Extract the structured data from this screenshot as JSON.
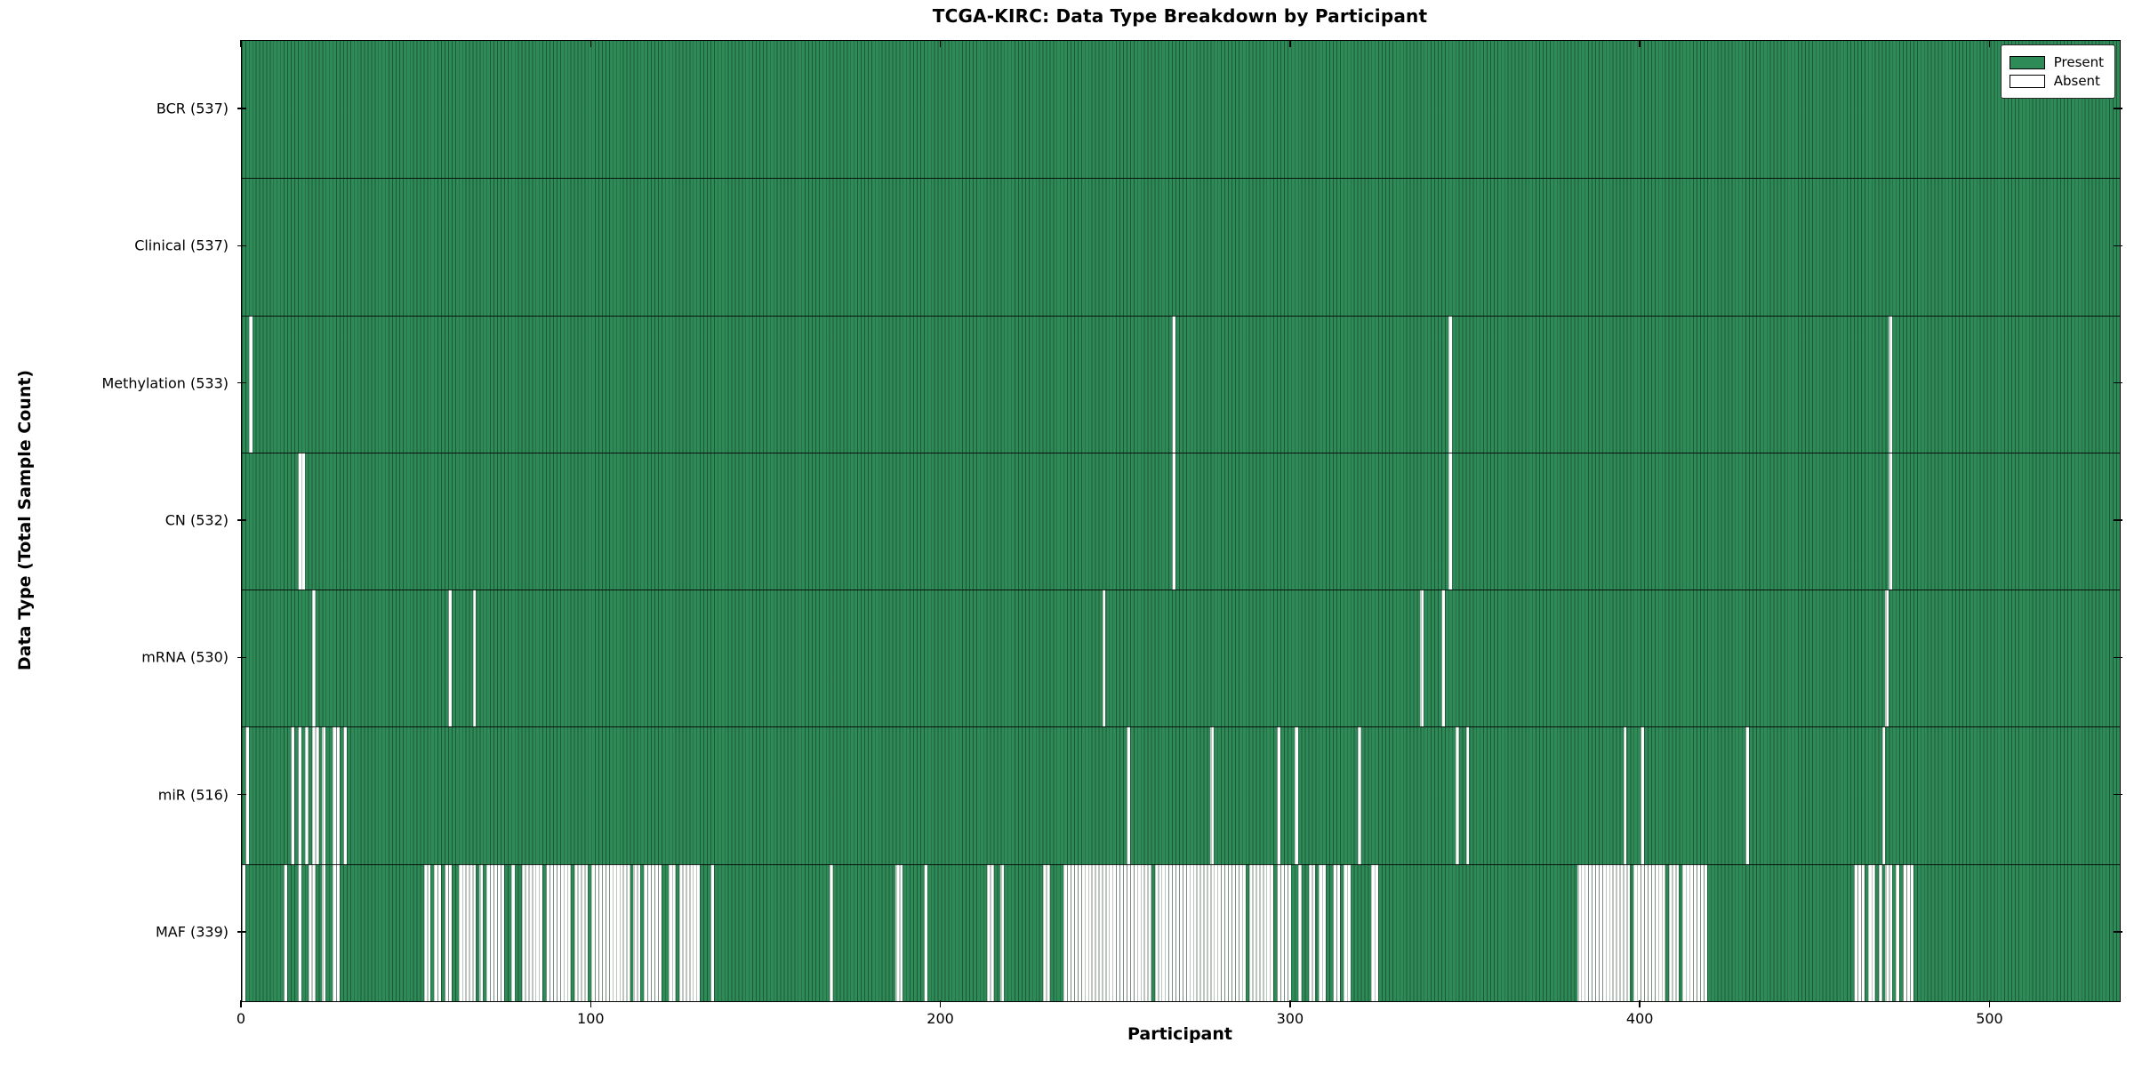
{
  "chart_data": {
    "type": "heatmap",
    "title": "TCGA-KIRC: Data Type Breakdown by Participant",
    "xlabel": "Participant",
    "ylabel": "Data Type (Total Sample Count)",
    "n_participants": 537,
    "xlim": [
      0,
      537
    ],
    "x_ticks": [
      0,
      100,
      200,
      300,
      400,
      500
    ],
    "grid": false,
    "colors": {
      "present": "#2e8b57",
      "absent": "#ffffff",
      "bar_edge": "#0f2d1e",
      "spine": "#000000"
    },
    "legend": {
      "position": "top-right",
      "entries": [
        {
          "label": "Present",
          "color": "#2e8b57"
        },
        {
          "label": "Absent",
          "color": "#ffffff"
        }
      ]
    },
    "rows": [
      {
        "label": "BCR (537)",
        "name": "BCR",
        "present_count": 537,
        "absent_ranges": []
      },
      {
        "label": "Clinical (537)",
        "name": "Clinical",
        "present_count": 537,
        "absent_ranges": []
      },
      {
        "label": "Methylation (533)",
        "name": "Methylation",
        "present_count": 533,
        "absent_ranges": [
          [
            2,
            2
          ],
          [
            266,
            266
          ],
          [
            345,
            345
          ],
          [
            471,
            471
          ]
        ]
      },
      {
        "label": "CN (532)",
        "name": "CN",
        "present_count": 532,
        "absent_ranges": [
          [
            16,
            17
          ],
          [
            266,
            266
          ],
          [
            345,
            345
          ],
          [
            471,
            471
          ]
        ]
      },
      {
        "label": "mRNA (530)",
        "name": "mRNA",
        "present_count": 530,
        "absent_ranges": [
          [
            20,
            20
          ],
          [
            59,
            59
          ],
          [
            66,
            66
          ],
          [
            246,
            246
          ],
          [
            337,
            337
          ],
          [
            343,
            343
          ],
          [
            470,
            470
          ]
        ]
      },
      {
        "label": "miR (516)",
        "name": "miR",
        "present_count": 516,
        "absent_ranges": [
          [
            1,
            1
          ],
          [
            14,
            14
          ],
          [
            16,
            16
          ],
          [
            18,
            18
          ],
          [
            20,
            21
          ],
          [
            23,
            23
          ],
          [
            26,
            27
          ],
          [
            29,
            29
          ],
          [
            253,
            253
          ],
          [
            277,
            277
          ],
          [
            296,
            296
          ],
          [
            301,
            301
          ],
          [
            319,
            319
          ],
          [
            347,
            347
          ],
          [
            350,
            350
          ],
          [
            395,
            395
          ],
          [
            400,
            400
          ],
          [
            430,
            430
          ],
          [
            469,
            469
          ]
        ]
      },
      {
        "label": "MAF (339)",
        "name": "MAF",
        "present_count": 339,
        "absent_ranges": [
          [
            0,
            0
          ],
          [
            12,
            12
          ],
          [
            16,
            16
          ],
          [
            19,
            20
          ],
          [
            23,
            23
          ],
          [
            26,
            27
          ],
          [
            52,
            53
          ],
          [
            55,
            56
          ],
          [
            58,
            59
          ],
          [
            62,
            66
          ],
          [
            68,
            68
          ],
          [
            70,
            74
          ],
          [
            77,
            77
          ],
          [
            80,
            85
          ],
          [
            87,
            93
          ],
          [
            95,
            98
          ],
          [
            100,
            110
          ],
          [
            112,
            113
          ],
          [
            115,
            119
          ],
          [
            122,
            123
          ],
          [
            125,
            130
          ],
          [
            134,
            134
          ],
          [
            168,
            168
          ],
          [
            187,
            188
          ],
          [
            195,
            195
          ],
          [
            213,
            214
          ],
          [
            217,
            217
          ],
          [
            229,
            230
          ],
          [
            235,
            259
          ],
          [
            261,
            286
          ],
          [
            288,
            294
          ],
          [
            296,
            299
          ],
          [
            302,
            302
          ],
          [
            305,
            306
          ],
          [
            308,
            309
          ],
          [
            312,
            313
          ],
          [
            315,
            316
          ],
          [
            323,
            324
          ],
          [
            382,
            396
          ],
          [
            398,
            406
          ],
          [
            408,
            410
          ],
          [
            412,
            418
          ],
          [
            461,
            463
          ],
          [
            465,
            466
          ],
          [
            468,
            468
          ],
          [
            470,
            471
          ],
          [
            473,
            473
          ],
          [
            475,
            477
          ]
        ]
      }
    ]
  }
}
